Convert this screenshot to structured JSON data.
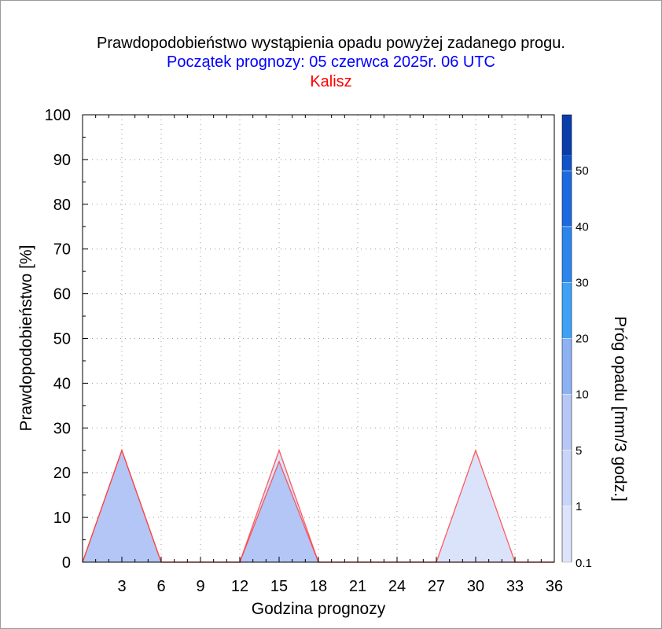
{
  "header": {
    "title": "Prawdopodobieństwo wystąpienia opadu powyżej zadanego progu.",
    "subtitle": "Początek prognozy: 05 czerwca 2025r. 06 UTC",
    "location": "Kalisz"
  },
  "colors": {
    "title": "#000000",
    "subtitle": "#0000ff",
    "location": "#ff0000",
    "outline": "#ff4040"
  },
  "chart_data": {
    "type": "area",
    "xlabel": "Godzina prognozy",
    "ylabel": "Prawdopodobieństwo [%]",
    "xlim": [
      0,
      36
    ],
    "ylim": [
      0,
      100
    ],
    "xticks": [
      3,
      6,
      9,
      12,
      15,
      18,
      21,
      24,
      27,
      30,
      33,
      36
    ],
    "yticks": [
      0,
      10,
      20,
      30,
      40,
      50,
      60,
      70,
      80,
      90,
      100
    ],
    "grid": true,
    "x": [
      0,
      3,
      6,
      9,
      12,
      15,
      18,
      21,
      24,
      27,
      30,
      33,
      36
    ],
    "series": [
      {
        "threshold": 0.1,
        "fill": "#dbe3fb",
        "values": [
          0,
          25,
          0,
          0,
          0,
          25,
          0,
          0,
          0,
          0,
          25,
          0,
          0
        ]
      },
      {
        "threshold": 1,
        "fill": "#b3c6f6",
        "values": [
          0,
          25,
          0,
          0,
          0,
          22.5,
          0,
          0,
          0,
          0,
          0,
          0,
          0
        ]
      }
    ],
    "colorbar": {
      "label": "Próg opadu [mm/3 godz.]",
      "bands": [
        {
          "color": "#dce3fb"
        },
        {
          "color": "#c8d4f8"
        },
        {
          "color": "#b6c7f6"
        },
        {
          "color": "#8cb2f4"
        },
        {
          "color": "#3ea1f5"
        },
        {
          "color": "#2b85ed"
        },
        {
          "color": "#1c6ae0"
        },
        {
          "color": "#0f53c8"
        },
        {
          "color": "#0a3daa"
        }
      ],
      "tick_labels": [
        "0.1",
        "1",
        "5",
        "10",
        "20",
        "30",
        "40",
        "50"
      ]
    }
  }
}
